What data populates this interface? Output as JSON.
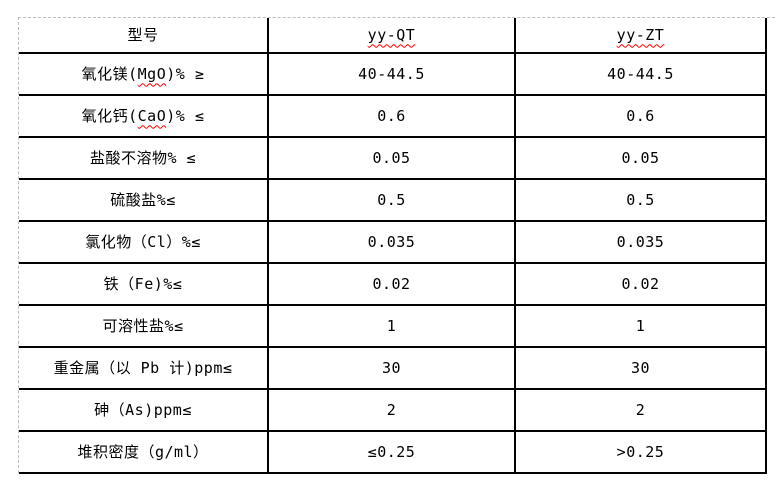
{
  "page": {
    "background_color": "#ffffff",
    "colors": {
      "grid_line": "#000000",
      "guide_line": "#bdbdbd",
      "spellcheck_squiggle": "#ff0000",
      "text": "#000000"
    }
  },
  "table": {
    "header": {
      "model_label": "型号",
      "columns": [
        {
          "text": "yy-QT",
          "squiggle": true
        },
        {
          "text": "yy-ZT",
          "squiggle": true
        }
      ]
    },
    "rows": [
      {
        "label_pre": "氧化镁(",
        "label_mark": "MgO",
        "label_post": ")% ≥",
        "qt": "40-44.5",
        "zt": "40-44.5"
      },
      {
        "label_pre": "氧化钙(",
        "label_mark": "CaO",
        "label_post": ")% ≤",
        "qt": "0.6",
        "zt": "0.6"
      },
      {
        "label_pre": "盐酸不溶物% ≤",
        "qt": "0.05",
        "zt": "0.05"
      },
      {
        "label_pre": "硫酸盐%≤",
        "qt": "0.5",
        "zt": "0.5"
      },
      {
        "label_pre": "氯化物（Cl）%≤",
        "qt": "0.035",
        "zt": "0.035"
      },
      {
        "label_pre": "铁（Fe)%≤",
        "qt": "0.02",
        "zt": "0.02"
      },
      {
        "label_pre": "可溶性盐%≤",
        "qt": "1",
        "zt": "1"
      },
      {
        "label_pre": "重金属（以 Pb 计)ppm≤",
        "qt": "30",
        "zt": "30"
      },
      {
        "label_pre": "砷（As)ppm≤",
        "qt": "2",
        "zt": "2"
      },
      {
        "label_pre": "堆积密度（g/ml）",
        "qt": "≤0.25",
        "zt": ">0.25"
      }
    ]
  }
}
